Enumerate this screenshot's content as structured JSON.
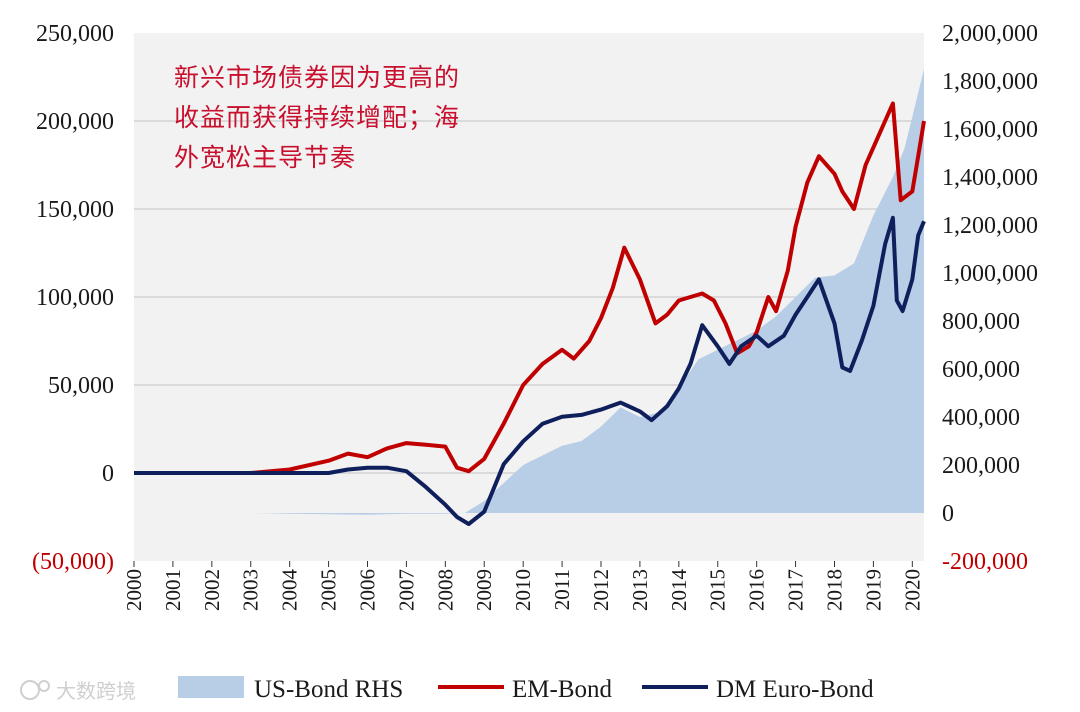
{
  "chart_data": {
    "type": "area+line",
    "title": "",
    "annotation": [
      "新兴市场债券因为更高的",
      "收益而获得持续增配；海",
      "外宽松主导节奏"
    ],
    "x_range": [
      2000,
      2020.3
    ],
    "x_ticks": [
      "2000",
      "2001",
      "2002",
      "2003",
      "2004",
      "2005",
      "2006",
      "2007",
      "2008",
      "2009",
      "2010",
      "2011",
      "2012",
      "2013",
      "2014",
      "2015",
      "2016",
      "2017",
      "2018",
      "2019",
      "2020"
    ],
    "left_axis": {
      "range": [
        -50000,
        250000
      ],
      "ticks": [
        250000,
        200000,
        150000,
        100000,
        50000,
        0,
        -50000
      ],
      "tick_labels": [
        "250,000",
        "200,000",
        "150,000",
        "100,000",
        "50,000",
        "0",
        "(50,000)"
      ]
    },
    "right_axis": {
      "range": [
        -200000,
        2000000
      ],
      "ticks": [
        2000000,
        1800000,
        1600000,
        1400000,
        1200000,
        1000000,
        800000,
        600000,
        400000,
        200000,
        0,
        -200000
      ],
      "tick_labels": [
        "2,000,000",
        "1,800,000",
        "1,600,000",
        "1,400,000",
        "1,200,000",
        "1,000,000",
        "800,000",
        "600,000",
        "400,000",
        "200,000",
        "0",
        "-200,000"
      ]
    },
    "series": [
      {
        "name": "US-Bond RHS",
        "type": "area",
        "axis": "right",
        "color": "#b8cde6",
        "x": [
          2000,
          2003,
          2004,
          2006,
          2007,
          2008,
          2008.5,
          2009,
          2010,
          2011,
          2011.5,
          2012,
          2012.5,
          2013,
          2013.5,
          2014,
          2014.5,
          2015,
          2015.5,
          2016,
          2016.5,
          2017,
          2017.5,
          2018,
          2018.5,
          2019,
          2019.5,
          2019.8,
          2020,
          2020.3
        ],
        "values": [
          0,
          0,
          -3000,
          -7000,
          -3000,
          -3000,
          0,
          50000,
          200000,
          280000,
          300000,
          360000,
          440000,
          400000,
          420000,
          520000,
          640000,
          680000,
          720000,
          760000,
          820000,
          900000,
          980000,
          990000,
          1040000,
          1240000,
          1400000,
          1520000,
          1650000,
          1850000
        ]
      },
      {
        "name": "EM-Bond",
        "type": "line",
        "axis": "left",
        "color": "#c00000",
        "x": [
          2000,
          2003,
          2004,
          2005,
          2005.5,
          2006,
          2006.5,
          2007,
          2007.5,
          2008,
          2008.3,
          2008.6,
          2009,
          2009.5,
          2010,
          2010.5,
          2011,
          2011.3,
          2011.7,
          2012,
          2012.3,
          2012.6,
          2013,
          2013.4,
          2013.7,
          2014,
          2014.3,
          2014.6,
          2014.9,
          2015.2,
          2015.5,
          2015.8,
          2016,
          2016.3,
          2016.5,
          2016.8,
          2017,
          2017.3,
          2017.6,
          2018,
          2018.2,
          2018.5,
          2018.8,
          2019,
          2019.3,
          2019.5,
          2019.7,
          2020,
          2020.15,
          2020.3
        ],
        "values": [
          0,
          0,
          2000,
          7000,
          11000,
          9000,
          14000,
          17000,
          16000,
          15000,
          3000,
          1000,
          8000,
          28000,
          50000,
          62000,
          70000,
          65000,
          75000,
          88000,
          105000,
          128000,
          110000,
          85000,
          90000,
          98000,
          100000,
          102000,
          98000,
          85000,
          68000,
          72000,
          80000,
          100000,
          92000,
          115000,
          140000,
          165000,
          180000,
          170000,
          160000,
          150000,
          175000,
          185000,
          200000,
          210000,
          155000,
          160000,
          180000,
          200000
        ]
      },
      {
        "name": "DM Euro-Bond",
        "type": "line",
        "axis": "left",
        "color": "#0f1f5c",
        "x": [
          2000,
          2003,
          2004,
          2005,
          2005.5,
          2006,
          2006.5,
          2007,
          2007.5,
          2008,
          2008.3,
          2008.6,
          2009,
          2009.5,
          2010,
          2010.5,
          2011,
          2011.5,
          2012,
          2012.5,
          2013,
          2013.3,
          2013.7,
          2014,
          2014.3,
          2014.6,
          2015,
          2015.3,
          2015.6,
          2016,
          2016.3,
          2016.7,
          2017,
          2017.3,
          2017.6,
          2018,
          2018.2,
          2018.4,
          2018.7,
          2019,
          2019.3,
          2019.5,
          2019.6,
          2019.75,
          2020,
          2020.15,
          2020.3
        ],
        "values": [
          0,
          0,
          0,
          0,
          2000,
          3000,
          3000,
          1000,
          -8000,
          -18000,
          -25000,
          -29000,
          -22000,
          5000,
          18000,
          28000,
          32000,
          33000,
          36000,
          40000,
          35000,
          30000,
          38000,
          48000,
          62000,
          84000,
          72000,
          62000,
          72000,
          78000,
          72000,
          78000,
          90000,
          100000,
          110000,
          85000,
          60000,
          58000,
          75000,
          95000,
          130000,
          145000,
          98000,
          92000,
          110000,
          135000,
          143000
        ]
      }
    ],
    "legend": {
      "position": "bottom",
      "entries": [
        {
          "label": "US-Bond RHS",
          "swatch": "area"
        },
        {
          "label": "EM-Bond",
          "swatch": "line"
        },
        {
          "label": "DM Euro-Bond",
          "swatch": "line"
        }
      ]
    },
    "grid": true
  },
  "watermark": "大数跨境"
}
